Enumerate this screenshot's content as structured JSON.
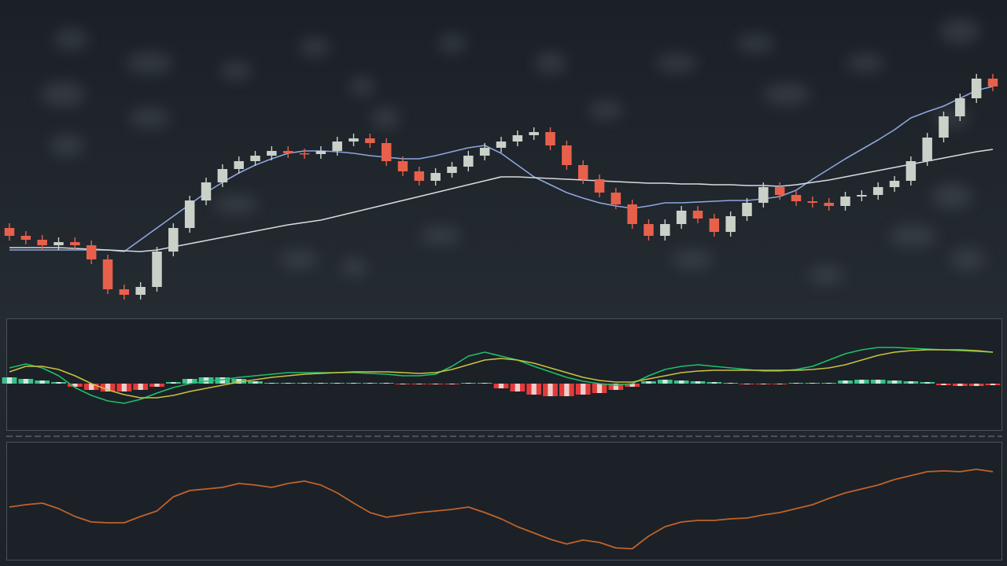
{
  "chart_data": [
    {
      "type": "candlestick",
      "categories": [
        null,
        null,
        null,
        null,
        null,
        null,
        null,
        null,
        null,
        null,
        null,
        null,
        null,
        null,
        null,
        null,
        null,
        null,
        null,
        null,
        null,
        null,
        null,
        null,
        null,
        null,
        null,
        null,
        null,
        null,
        null,
        null,
        null,
        null,
        null,
        null,
        null,
        null,
        null,
        null,
        null,
        null,
        null,
        null,
        null,
        null,
        null,
        null,
        null,
        null,
        null,
        null,
        null,
        null,
        null,
        null,
        null,
        null,
        null,
        null,
        null
      ],
      "open": [
        110,
        100,
        95,
        88,
        92,
        88,
        70,
        32,
        25,
        35,
        80,
        110,
        145,
        168,
        185,
        195,
        202,
        208,
        205,
        204,
        208,
        220,
        224,
        218,
        195,
        182,
        170,
        180,
        188,
        202,
        212,
        220,
        228,
        232,
        215,
        190,
        172,
        155,
        140,
        115,
        100,
        115,
        132,
        122,
        105,
        125,
        142,
        162,
        152,
        144,
        142,
        138,
        150,
        152,
        162,
        170,
        195,
        225,
        252,
        275,
        300
      ],
      "high": [
        116,
        106,
        101,
        98,
        98,
        94,
        76,
        38,
        41,
        86,
        116,
        151,
        174,
        191,
        201,
        208,
        214,
        214,
        211,
        214,
        226,
        230,
        230,
        224,
        201,
        188,
        186,
        194,
        208,
        218,
        226,
        234,
        238,
        238,
        221,
        196,
        178,
        161,
        146,
        121,
        121,
        138,
        138,
        128,
        131,
        148,
        168,
        168,
        158,
        150,
        148,
        156,
        158,
        168,
        176,
        201,
        231,
        258,
        281,
        306,
        306
      ],
      "low": [
        94,
        89,
        82,
        82,
        82,
        64,
        26,
        19,
        19,
        29,
        74,
        104,
        139,
        162,
        179,
        189,
        196,
        199,
        198,
        198,
        202,
        214,
        212,
        189,
        176,
        164,
        164,
        174,
        182,
        196,
        206,
        214,
        222,
        209,
        184,
        166,
        149,
        134,
        109,
        94,
        94,
        109,
        116,
        99,
        99,
        119,
        136,
        146,
        138,
        136,
        132,
        132,
        144,
        146,
        156,
        164,
        189,
        219,
        246,
        269,
        284
      ],
      "close": [
        100,
        95,
        88,
        92,
        88,
        70,
        32,
        25,
        35,
        80,
        110,
        145,
        168,
        185,
        195,
        202,
        208,
        205,
        204,
        208,
        220,
        224,
        218,
        195,
        182,
        170,
        180,
        188,
        202,
        212,
        220,
        228,
        232,
        215,
        190,
        172,
        155,
        140,
        115,
        100,
        115,
        132,
        122,
        105,
        125,
        142,
        162,
        152,
        144,
        142,
        138,
        150,
        152,
        162,
        170,
        195,
        225,
        252,
        275,
        300,
        290
      ],
      "up_color": "#c9d1c9",
      "down_color": "#e8604c",
      "series": [
        {
          "color": "#8ea6df",
          "values": [
            82,
            82,
            82,
            82,
            82,
            82,
            82,
            80,
            95,
            110,
            125,
            140,
            155,
            168,
            180,
            190,
            198,
            205,
            208,
            208,
            207,
            205,
            202,
            200,
            198,
            198,
            202,
            207,
            212,
            215,
            205,
            190,
            175,
            165,
            155,
            148,
            142,
            138,
            135,
            138,
            142,
            142,
            143,
            144,
            145,
            145,
            147,
            150,
            158,
            172,
            185,
            198,
            210,
            222,
            235,
            250,
            258,
            265,
            275,
            285,
            290
          ]
        },
        {
          "color": "#d6dbde",
          "values": [
            85,
            85,
            85,
            85,
            84,
            83,
            82,
            81,
            80,
            82,
            86,
            90,
            94,
            98,
            102,
            106,
            110,
            114,
            117,
            120,
            125,
            130,
            135,
            140,
            145,
            150,
            155,
            160,
            165,
            170,
            175,
            175,
            174,
            173,
            172,
            171,
            170,
            169,
            168,
            167,
            167,
            166,
            166,
            165,
            165,
            164,
            164,
            163,
            165,
            168,
            171,
            175,
            179,
            183,
            187,
            191,
            195,
            199,
            203,
            207,
            210
          ]
        }
      ],
      "ylim": [
        0,
        400
      ]
    },
    {
      "type": "macd",
      "categories": [
        null,
        null,
        null,
        null,
        null,
        null,
        null,
        null,
        null,
        null,
        null,
        null,
        null,
        null,
        null,
        null,
        null,
        null,
        null,
        null,
        null,
        null,
        null,
        null,
        null,
        null,
        null,
        null,
        null,
        null,
        null,
        null,
        null,
        null,
        null,
        null,
        null,
        null,
        null,
        null,
        null,
        null,
        null,
        null,
        null,
        null,
        null,
        null,
        null,
        null,
        null,
        null,
        null,
        null,
        null,
        null,
        null,
        null,
        null,
        null,
        null
      ],
      "values": [
        8,
        6,
        4,
        2,
        -4,
        -8,
        -10,
        -10,
        -8,
        -4,
        2,
        6,
        8,
        8,
        6,
        3,
        1,
        1,
        1,
        1,
        1,
        1,
        1,
        1,
        -1,
        -1,
        -1,
        -1,
        1,
        1,
        -6,
        -10,
        -14,
        -16,
        -16,
        -14,
        -12,
        -8,
        -4,
        3,
        5,
        4,
        3,
        2,
        1,
        -1,
        -1,
        -1,
        1,
        1,
        1,
        4,
        5,
        5,
        4,
        3,
        2,
        -2,
        -3,
        -3,
        -2
      ],
      "positive_color": "#3dbd8a",
      "negative_color": "#e23b3b",
      "series": [
        {
          "color": "#1fbf6a",
          "values": [
            20,
            25,
            20,
            10,
            -5,
            -15,
            -22,
            -25,
            -20,
            -12,
            -5,
            0,
            3,
            5,
            8,
            10,
            12,
            14,
            14,
            14,
            14,
            14,
            13,
            12,
            10,
            10,
            12,
            22,
            35,
            40,
            35,
            30,
            22,
            15,
            8,
            3,
            0,
            -2,
            0,
            10,
            18,
            22,
            24,
            22,
            20,
            18,
            16,
            16,
            18,
            22,
            30,
            38,
            43,
            46,
            46,
            45,
            44,
            43,
            42,
            41,
            40
          ]
        },
        {
          "color": "#c9c13e",
          "values": [
            15,
            22,
            22,
            18,
            10,
            0,
            -8,
            -14,
            -18,
            -18,
            -15,
            -10,
            -6,
            -2,
            2,
            5,
            8,
            10,
            12,
            13,
            14,
            15,
            15,
            15,
            14,
            13,
            14,
            18,
            24,
            30,
            32,
            30,
            26,
            20,
            14,
            8,
            4,
            2,
            2,
            6,
            10,
            14,
            16,
            17,
            17,
            17,
            17,
            17,
            17,
            18,
            20,
            24,
            30,
            36,
            40,
            42,
            43,
            43,
            43,
            42,
            40
          ]
        }
      ],
      "ylim": [
        -60,
        83
      ]
    },
    {
      "type": "line",
      "categories": [
        null,
        null,
        null,
        null,
        null,
        null,
        null,
        null,
        null,
        null,
        null,
        null,
        null,
        null,
        null,
        null,
        null,
        null,
        null,
        null,
        null,
        null,
        null,
        null,
        null,
        null,
        null,
        null,
        null,
        null,
        null,
        null,
        null,
        null,
        null,
        null,
        null,
        null,
        null,
        null,
        null,
        null,
        null,
        null,
        null,
        null,
        null,
        null,
        null,
        null,
        null,
        null,
        null,
        null,
        null,
        null,
        null,
        null,
        null,
        null,
        null
      ],
      "series": [
        {
          "color": "#c0622a",
          "values": [
            67,
            70,
            72,
            65,
            55,
            48,
            47,
            47,
            55,
            62,
            80,
            88,
            90,
            92,
            97,
            95,
            92,
            97,
            100,
            95,
            85,
            72,
            60,
            54,
            57,
            60,
            62,
            64,
            67,
            60,
            52,
            42,
            34,
            26,
            20,
            25,
            22,
            15,
            14,
            30,
            42,
            48,
            50,
            50,
            52,
            53,
            57,
            60,
            65,
            70,
            78,
            85,
            90,
            95,
            102,
            107,
            112,
            113,
            112,
            115,
            112
          ]
        }
      ],
      "ylim": [
        0,
        150
      ]
    }
  ]
}
